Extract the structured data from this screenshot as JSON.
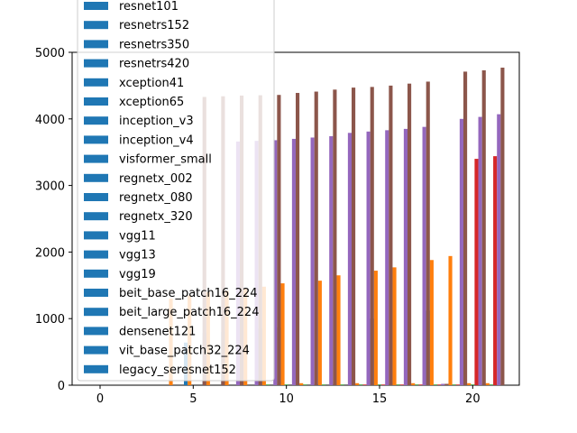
{
  "chart_data": {
    "type": "bar",
    "title": "",
    "xlabel": "",
    "ylabel": "",
    "xlim": [
      -1.5,
      22.5
    ],
    "ylim": [
      0,
      5000
    ],
    "grid": false,
    "legend_placement": "upper-left",
    "x_ticks": [
      0,
      5,
      10,
      15,
      20
    ],
    "x_tick_labels": [
      "0",
      "5",
      "10",
      "15",
      "20"
    ],
    "y_ticks": [
      0,
      1000,
      2000,
      3000,
      4000,
      5000
    ],
    "y_tick_labels": [
      "0",
      "1000",
      "2000",
      "3000",
      "4000",
      "5000"
    ],
    "legend": [
      "resnet101",
      "resnetrs152",
      "resnetrs350",
      "resnetrs420",
      "xception41",
      "xception65",
      "inception_v3",
      "inception_v4",
      "visformer_small",
      "regnetx_002",
      "regnetx_080",
      "regnetx_320",
      "vgg11",
      "vgg13",
      "vgg19",
      "beit_base_patch16_224",
      "beit_large_patch16_224",
      "densenet121",
      "vit_base_patch32_224",
      "legacy_seresnet152"
    ],
    "legend_color": "#1f77b4",
    "bar_width": 0.2,
    "series": [
      {
        "color": "#1f77b4",
        "offset": -0.4,
        "x": [
          5,
          6,
          7,
          8,
          9,
          10,
          11,
          12,
          13,
          14,
          15,
          16,
          17,
          18,
          19,
          20,
          21
        ],
        "values": [
          640,
          790,
          800,
          820,
          850,
          870,
          15,
          15,
          15,
          15,
          1000,
          20,
          20,
          1120,
          20,
          20,
          20
        ]
      },
      {
        "color": "#ff7f0e",
        "offset": -0.2,
        "x": [
          4,
          5,
          6,
          7,
          8,
          9,
          10,
          11,
          12,
          13,
          14,
          15,
          16,
          17,
          18,
          19,
          20,
          21
        ],
        "values": [
          1300,
          1350,
          1400,
          1420,
          1450,
          1480,
          1530,
          30,
          1570,
          1650,
          30,
          1720,
          1770,
          30,
          1880,
          1940,
          30,
          30
        ]
      },
      {
        "color": "#2ca02c",
        "offset": 0.0,
        "x": [
          9,
          10,
          11,
          12,
          13,
          14,
          15,
          16,
          17,
          18,
          19,
          20,
          21
        ],
        "values": [
          10,
          10,
          10,
          10,
          10,
          10,
          10,
          10,
          10,
          10,
          10,
          10,
          10
        ]
      },
      {
        "color": "#d62728",
        "offset": 0.2,
        "x": [
          14,
          15,
          16,
          17,
          18,
          19,
          20,
          21
        ],
        "values": [
          10,
          10,
          10,
          10,
          10,
          10,
          3400,
          3440
        ]
      },
      {
        "color": "#9467bd",
        "offset": 0.4,
        "x": [
          7,
          8,
          9,
          10,
          11,
          12,
          13,
          14,
          15,
          16,
          17,
          18,
          19,
          20,
          21
        ],
        "values": [
          3660,
          3670,
          3680,
          3700,
          3720,
          3740,
          3790,
          3810,
          3830,
          3850,
          3880,
          20,
          4000,
          4030,
          4070
        ]
      },
      {
        "color": "#8c564b",
        "offset": 0.6,
        "x": [
          5,
          6,
          7,
          8,
          9,
          10,
          11,
          12,
          13,
          14,
          15,
          16,
          17,
          18,
          19,
          20,
          21
        ],
        "values": [
          4330,
          4340,
          4350,
          4355,
          4360,
          4390,
          4410,
          4440,
          4470,
          4480,
          4500,
          4530,
          4560,
          20,
          4710,
          4730,
          4770
        ]
      }
    ]
  }
}
